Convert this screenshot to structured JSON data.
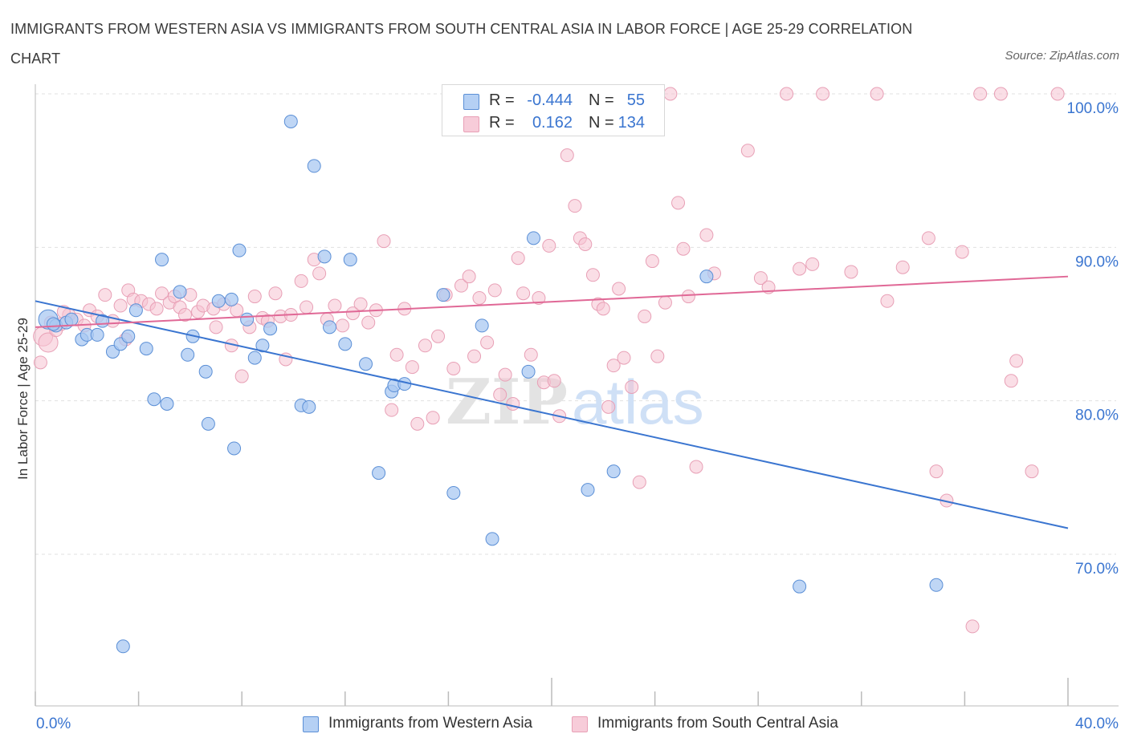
{
  "header": {
    "title": "IMMIGRANTS FROM WESTERN ASIA VS IMMIGRANTS FROM SOUTH CENTRAL ASIA IN LABOR FORCE | AGE 25-29 CORRELATION CHART",
    "source": "Source: ZipAtlas.com"
  },
  "legend": {
    "rows": [
      {
        "r_label": "R =",
        "r_value": "-0.444",
        "n_label": "N =",
        "n_value": "55"
      },
      {
        "r_label": "R =",
        "r_value": "0.162",
        "n_label": "N =",
        "n_value": "134"
      }
    ]
  },
  "bottom_legend": {
    "items": [
      {
        "label": "Immigrants from Western Asia"
      },
      {
        "label": "Immigrants from South Central Asia"
      }
    ]
  },
  "watermark": {
    "part1": "ZIP",
    "part2": "atlas"
  },
  "chart_data": {
    "type": "scatter",
    "title": "IMMIGRANTS FROM WESTERN ASIA VS IMMIGRANTS FROM SOUTH CENTRAL ASIA IN LABOR FORCE | AGE 25-29 CORRELATION CHART",
    "xlabel": "",
    "ylabel": "In Labor Force | Age 25-29",
    "xlim": [
      0,
      40
    ],
    "ylim": [
      60,
      100
    ],
    "x_tick_labels": [
      "0.0%",
      "40.0%"
    ],
    "y_ticks": [
      70,
      80,
      90,
      100
    ],
    "y_tick_labels": [
      "70.0%",
      "80.0%",
      "90.0%",
      "100.0%"
    ],
    "grid": true,
    "legend_position": "top-center",
    "colors": {
      "blue_fill": "#a9c8f1",
      "blue_stroke": "#5b8fd6",
      "blue_line": "#3a75d0",
      "pink_fill": "#f5c2d1",
      "pink_stroke": "#e8a0b6",
      "pink_line": "#e06896",
      "axis_text": "#3a75d0",
      "grid": "#e0e0e0"
    },
    "series": [
      {
        "name": "Immigrants from Western Asia",
        "color": "blue",
        "r": -0.444,
        "n": 55,
        "trend": {
          "x": [
            0,
            40
          ],
          "y": [
            86.5,
            71.7
          ]
        },
        "points": [
          [
            0.5,
            85.3
          ],
          [
            0.8,
            84.9
          ],
          [
            0.7,
            85.0
          ],
          [
            1.2,
            85.1
          ],
          [
            1.4,
            85.3
          ],
          [
            1.8,
            84.0
          ],
          [
            2.0,
            84.3
          ],
          [
            2.4,
            84.3
          ],
          [
            2.6,
            85.2
          ],
          [
            3.0,
            83.2
          ],
          [
            3.3,
            83.7
          ],
          [
            3.6,
            84.2
          ],
          [
            3.9,
            85.9
          ],
          [
            4.3,
            83.4
          ],
          [
            4.6,
            80.1
          ],
          [
            4.9,
            89.2
          ],
          [
            5.1,
            79.8
          ],
          [
            5.6,
            87.1
          ],
          [
            5.9,
            83.0
          ],
          [
            6.1,
            84.2
          ],
          [
            6.6,
            81.9
          ],
          [
            6.7,
            78.5
          ],
          [
            7.1,
            86.5
          ],
          [
            7.6,
            86.6
          ],
          [
            7.7,
            76.9
          ],
          [
            7.9,
            89.8
          ],
          [
            8.2,
            85.3
          ],
          [
            8.5,
            82.8
          ],
          [
            8.8,
            83.6
          ],
          [
            9.1,
            84.7
          ],
          [
            9.9,
            98.2
          ],
          [
            10.3,
            79.7
          ],
          [
            10.6,
            79.6
          ],
          [
            10.8,
            95.3
          ],
          [
            11.2,
            89.4
          ],
          [
            11.4,
            84.8
          ],
          [
            12.0,
            83.7
          ],
          [
            12.2,
            89.2
          ],
          [
            12.8,
            82.4
          ],
          [
            13.3,
            75.3
          ],
          [
            13.8,
            80.6
          ],
          [
            13.9,
            81.0
          ],
          [
            14.3,
            81.1
          ],
          [
            15.8,
            86.9
          ],
          [
            16.2,
            74.0
          ],
          [
            17.3,
            84.9
          ],
          [
            17.7,
            71.0
          ],
          [
            19.1,
            81.9
          ],
          [
            19.3,
            90.6
          ],
          [
            21.4,
            74.2
          ],
          [
            22.4,
            75.4
          ],
          [
            26.0,
            88.1
          ],
          [
            29.6,
            67.9
          ],
          [
            34.9,
            68.0
          ],
          [
            3.4,
            64.0
          ]
        ]
      },
      {
        "name": "Immigrants from South Central Asia",
        "color": "pink",
        "r": 0.162,
        "n": 134,
        "trend": {
          "x": [
            0,
            40
          ],
          "y": [
            84.8,
            88.1
          ]
        },
        "points": [
          [
            0.3,
            84.2
          ],
          [
            0.5,
            83.8
          ],
          [
            0.8,
            84.6
          ],
          [
            1.0,
            85.0
          ],
          [
            1.3,
            85.6
          ],
          [
            1.6,
            85.3
          ],
          [
            1.9,
            84.9
          ],
          [
            2.1,
            85.9
          ],
          [
            2.4,
            85.5
          ],
          [
            2.7,
            86.9
          ],
          [
            3.0,
            85.2
          ],
          [
            3.3,
            86.2
          ],
          [
            3.5,
            84.0
          ],
          [
            3.6,
            87.2
          ],
          [
            3.8,
            86.6
          ],
          [
            4.1,
            86.5
          ],
          [
            4.4,
            86.3
          ],
          [
            4.7,
            86.0
          ],
          [
            4.9,
            87.0
          ],
          [
            5.2,
            86.4
          ],
          [
            5.4,
            86.8
          ],
          [
            5.6,
            86.1
          ],
          [
            5.8,
            85.6
          ],
          [
            6.0,
            86.9
          ],
          [
            6.3,
            85.8
          ],
          [
            6.5,
            86.2
          ],
          [
            6.9,
            86.0
          ],
          [
            7.0,
            84.8
          ],
          [
            7.3,
            86.3
          ],
          [
            7.6,
            83.6
          ],
          [
            7.8,
            85.9
          ],
          [
            8.0,
            81.6
          ],
          [
            8.3,
            84.8
          ],
          [
            8.5,
            86.8
          ],
          [
            8.8,
            85.4
          ],
          [
            9.0,
            85.2
          ],
          [
            9.3,
            87.0
          ],
          [
            9.5,
            85.5
          ],
          [
            9.7,
            82.7
          ],
          [
            9.9,
            85.6
          ],
          [
            10.3,
            87.8
          ],
          [
            10.5,
            86.1
          ],
          [
            10.8,
            89.2
          ],
          [
            11.0,
            88.3
          ],
          [
            11.3,
            85.3
          ],
          [
            11.6,
            86.2
          ],
          [
            11.9,
            84.9
          ],
          [
            12.3,
            85.7
          ],
          [
            12.6,
            86.3
          ],
          [
            12.9,
            85.1
          ],
          [
            13.2,
            85.9
          ],
          [
            13.5,
            90.4
          ],
          [
            13.8,
            79.4
          ],
          [
            14.0,
            83.0
          ],
          [
            14.3,
            86.0
          ],
          [
            14.6,
            82.2
          ],
          [
            14.8,
            78.5
          ],
          [
            15.1,
            83.6
          ],
          [
            15.4,
            78.9
          ],
          [
            15.6,
            84.2
          ],
          [
            15.9,
            86.9
          ],
          [
            16.2,
            82.1
          ],
          [
            16.5,
            87.5
          ],
          [
            16.8,
            88.1
          ],
          [
            17.0,
            82.9
          ],
          [
            17.2,
            86.7
          ],
          [
            17.5,
            83.8
          ],
          [
            17.8,
            87.2
          ],
          [
            18.0,
            80.4
          ],
          [
            18.2,
            81.7
          ],
          [
            18.5,
            79.8
          ],
          [
            18.7,
            89.3
          ],
          [
            18.9,
            87.0
          ],
          [
            19.2,
            83.0
          ],
          [
            19.5,
            86.7
          ],
          [
            19.7,
            81.2
          ],
          [
            19.9,
            90.1
          ],
          [
            20.1,
            81.3
          ],
          [
            20.3,
            79.0
          ],
          [
            20.6,
            96.0
          ],
          [
            20.9,
            92.7
          ],
          [
            21.1,
            90.6
          ],
          [
            21.3,
            90.2
          ],
          [
            21.6,
            88.2
          ],
          [
            21.8,
            86.3
          ],
          [
            22.0,
            86.0
          ],
          [
            22.2,
            79.6
          ],
          [
            22.4,
            82.3
          ],
          [
            22.6,
            87.3
          ],
          [
            22.8,
            82.8
          ],
          [
            23.1,
            80.9
          ],
          [
            23.4,
            74.7
          ],
          [
            23.6,
            85.5
          ],
          [
            23.9,
            89.1
          ],
          [
            24.1,
            82.9
          ],
          [
            24.4,
            86.4
          ],
          [
            24.6,
            100.0
          ],
          [
            24.9,
            92.9
          ],
          [
            25.1,
            89.9
          ],
          [
            25.3,
            86.8
          ],
          [
            25.6,
            75.7
          ],
          [
            26.0,
            90.8
          ],
          [
            26.3,
            88.3
          ],
          [
            27.6,
            96.3
          ],
          [
            28.1,
            88.0
          ],
          [
            28.4,
            87.4
          ],
          [
            29.1,
            100.0
          ],
          [
            29.6,
            88.6
          ],
          [
            30.1,
            88.9
          ],
          [
            30.5,
            100.0
          ],
          [
            31.6,
            88.4
          ],
          [
            32.6,
            100.0
          ],
          [
            33.0,
            86.5
          ],
          [
            33.6,
            88.7
          ],
          [
            34.6,
            90.6
          ],
          [
            34.9,
            75.4
          ],
          [
            35.3,
            73.5
          ],
          [
            35.9,
            89.7
          ],
          [
            36.6,
            100.0
          ],
          [
            37.4,
            100.0
          ],
          [
            37.8,
            81.3
          ],
          [
            38.0,
            82.6
          ],
          [
            38.6,
            75.4
          ],
          [
            39.6,
            100.0
          ],
          [
            36.3,
            65.3
          ],
          [
            22.9,
            100.0
          ],
          [
            0.2,
            82.5
          ],
          [
            0.6,
            85.1
          ],
          [
            1.1,
            85.8
          ]
        ]
      }
    ]
  }
}
